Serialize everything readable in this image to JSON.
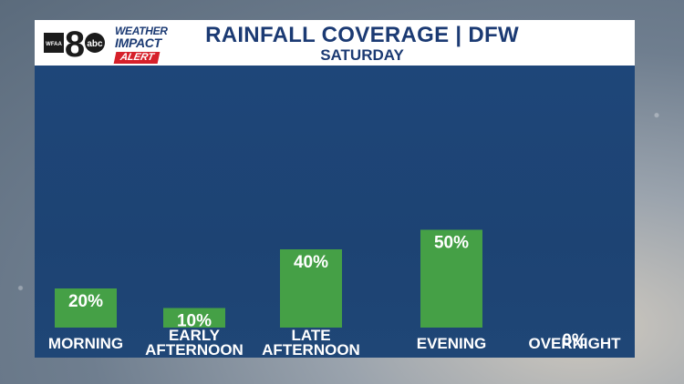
{
  "header": {
    "station_badge": "8",
    "station_letters": "WFAA",
    "network": "abc",
    "brand_line1": "WEATHER",
    "brand_line2": "IMPACT",
    "brand_alert": "ALERT",
    "title": "RAINFALL COVERAGE | DFW",
    "subtitle": "SATURDAY"
  },
  "colors": {
    "header_text": "#1b3a73",
    "panel": "#1e4679",
    "bar": "#45a046",
    "label": "#ffffff",
    "alert": "#d6202a"
  },
  "chart_data": {
    "type": "bar",
    "title": "RAINFALL COVERAGE | DFW",
    "subtitle": "SATURDAY",
    "categories": [
      "MORNING",
      "EARLY AFTERNOON",
      "LATE AFTERNOON",
      "EVENING",
      "OVERNIGHT"
    ],
    "category_lines": [
      [
        "MORNING"
      ],
      [
        "EARLY",
        "AFTERNOON"
      ],
      [
        "LATE",
        "AFTERNOON"
      ],
      [
        "EVENING"
      ],
      [
        "OVERNIGHT"
      ]
    ],
    "values": [
      20,
      10,
      40,
      50,
      0
    ],
    "value_labels": [
      "20%",
      "10%",
      "40%",
      "50%",
      "0%"
    ],
    "unit": "%",
    "ylim": [
      0,
      100
    ],
    "grid": false,
    "legend": "none"
  }
}
